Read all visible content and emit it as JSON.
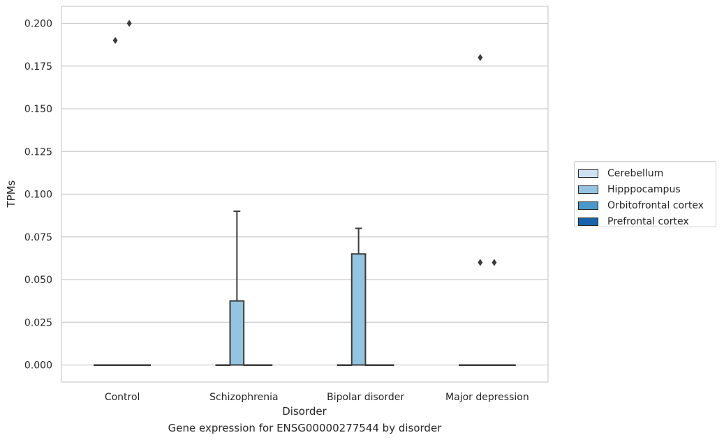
{
  "caption": "Gene expression for ENSG00000277544 by disorder",
  "chart_data": {
    "type": "box",
    "title": "",
    "xlabel": "Disorder",
    "ylabel": "TPMs",
    "categories": [
      "Control",
      "Schizophrenia",
      "Bipolar disorder",
      "Major depression"
    ],
    "ylim": [
      -0.01,
      0.21
    ],
    "yticks": [
      "0.000",
      "0.025",
      "0.050",
      "0.075",
      "0.100",
      "0.125",
      "0.150",
      "0.175",
      "0.200"
    ],
    "grid": "horizontal",
    "legend_position": "right",
    "series": [
      {
        "name": "Cerebellum",
        "color": "#d0e1f2",
        "boxes": [
          {
            "category": "Control",
            "min": 0,
            "q1": 0,
            "median": 0,
            "q3": 0,
            "max": 0,
            "outliers": []
          },
          {
            "category": "Schizophrenia",
            "min": 0,
            "q1": 0,
            "median": 0,
            "q3": 0,
            "max": 0,
            "outliers": []
          },
          {
            "category": "Bipolar disorder",
            "min": 0,
            "q1": 0,
            "median": 0,
            "q3": 0,
            "max": 0,
            "outliers": []
          },
          {
            "category": "Major depression",
            "min": 0,
            "q1": 0,
            "median": 0,
            "q3": 0,
            "max": 0,
            "outliers": []
          }
        ]
      },
      {
        "name": "Hipppocampus",
        "color": "#94c4df",
        "boxes": [
          {
            "category": "Control",
            "min": 0,
            "q1": 0,
            "median": 0,
            "q3": 0,
            "max": 0,
            "outliers": [
              0.19
            ]
          },
          {
            "category": "Schizophrenia",
            "min": 0,
            "q1": 0,
            "median": 0,
            "q3": 0.0375,
            "max": 0.09,
            "outliers": []
          },
          {
            "category": "Bipolar disorder",
            "min": 0,
            "q1": 0,
            "median": 0,
            "q3": 0.065,
            "max": 0.08,
            "outliers": []
          },
          {
            "category": "Major depression",
            "min": 0,
            "q1": 0,
            "median": 0,
            "q3": 0,
            "max": 0,
            "outliers": [
              0.18,
              0.06
            ]
          }
        ]
      },
      {
        "name": "Orbitofrontal cortex",
        "color": "#4a98c9",
        "boxes": [
          {
            "category": "Control",
            "min": 0,
            "q1": 0,
            "median": 0,
            "q3": 0,
            "max": 0,
            "outliers": [
              0.2
            ]
          },
          {
            "category": "Schizophrenia",
            "min": 0,
            "q1": 0,
            "median": 0,
            "q3": 0,
            "max": 0,
            "outliers": []
          },
          {
            "category": "Bipolar disorder",
            "min": 0,
            "q1": 0,
            "median": 0,
            "q3": 0,
            "max": 0,
            "outliers": []
          },
          {
            "category": "Major depression",
            "min": 0,
            "q1": 0,
            "median": 0,
            "q3": 0,
            "max": 0,
            "outliers": [
              0.06
            ]
          }
        ]
      },
      {
        "name": "Prefrontal cortex",
        "color": "#1764ab",
        "boxes": [
          {
            "category": "Control",
            "min": 0,
            "q1": 0,
            "median": 0,
            "q3": 0,
            "max": 0,
            "outliers": []
          },
          {
            "category": "Schizophrenia",
            "min": 0,
            "q1": 0,
            "median": 0,
            "q3": 0,
            "max": 0,
            "outliers": []
          },
          {
            "category": "Bipolar disorder",
            "min": 0,
            "q1": 0,
            "median": 0,
            "q3": 0,
            "max": 0,
            "outliers": []
          },
          {
            "category": "Major depression",
            "min": 0,
            "q1": 0,
            "median": 0,
            "q3": 0,
            "max": 0,
            "outliers": []
          }
        ]
      }
    ]
  }
}
